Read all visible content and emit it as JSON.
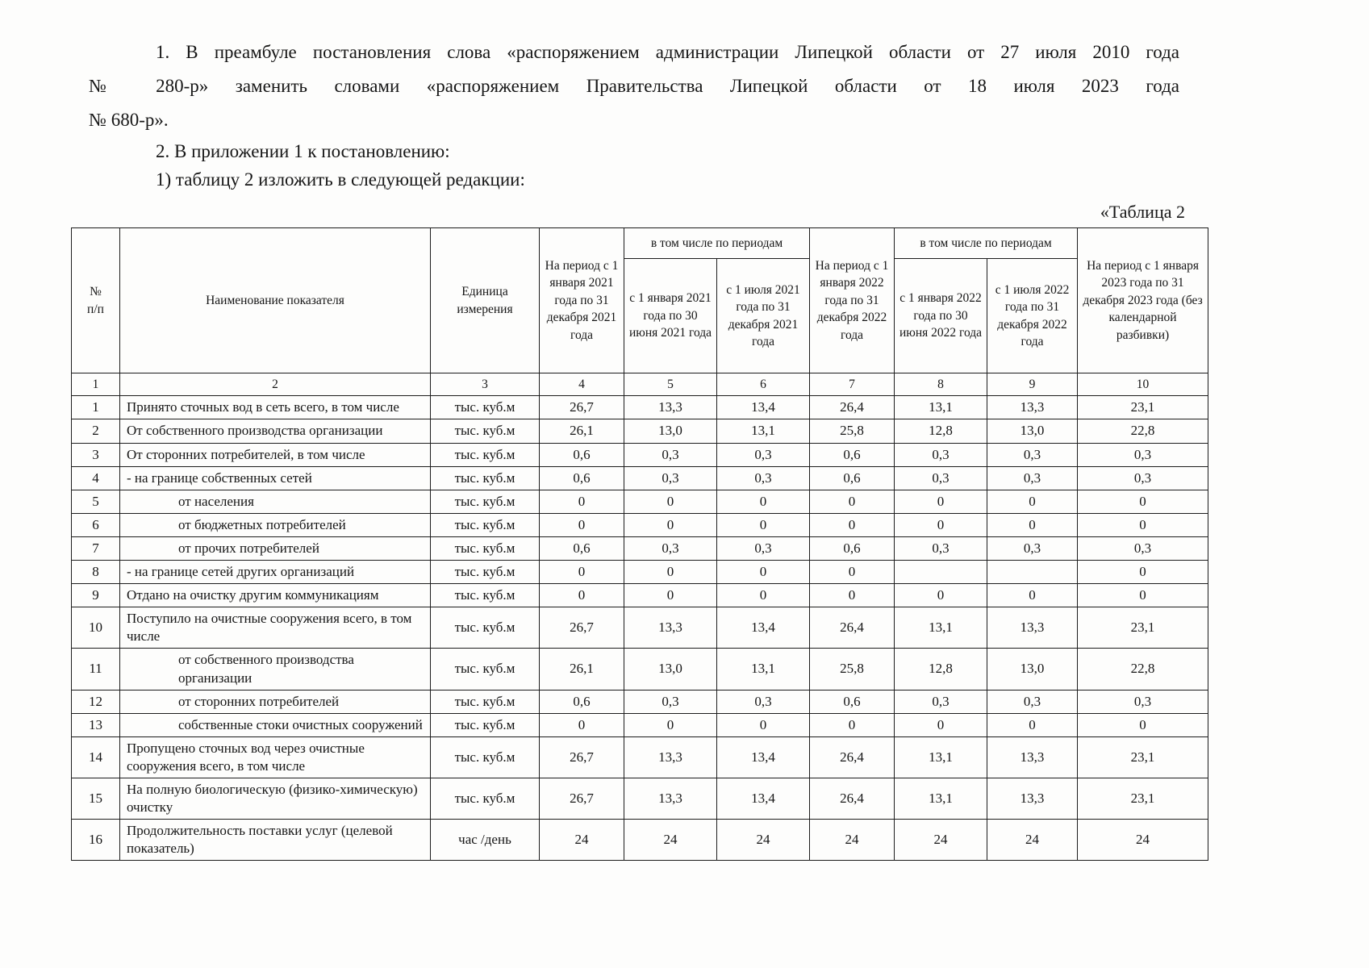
{
  "document": {
    "paragraph1_lines": [
      "1.  В преамбуле постановления слова «распоряжением администрации Липецкой области от 27 июля 2010 года",
      "№ 280-р» заменить словами «распоряжением Правительства Липецкой области от 18 июля 2023 года",
      "№ 680-р»."
    ],
    "paragraph2": "2.  В приложении 1 к постановлению:",
    "paragraph3": "1)  таблицу 2 изложить в следующей редакции:",
    "table_label": "«Таблица 2"
  },
  "table": {
    "header": {
      "num": "№\nп/п",
      "name": "Наименование показателя",
      "unit": "Единица измерения",
      "period2021": "На период с 1 января 2021 года по 31 декабря 2021 года",
      "including": "в том числе по периодам",
      "h2021a": "с 1 января 2021 года по 30 июня 2021 года",
      "h2021b": "с 1 июля 2021 года по 31 декабря 2021 года",
      "period2022": "На период с 1 января 2022 года по 31 декабря 2022 года",
      "h2022a": "с 1 января 2022 года по 30 июня 2022 года",
      "h2022b": "с 1 июля 2022 года по 31 декабря 2022 года",
      "period2023": "На период с 1 января 2023 года по 31 декабря 2023 года (без календарной разбивки)"
    },
    "column_numbers": [
      "1",
      "2",
      "3",
      "4",
      "5",
      "6",
      "7",
      "8",
      "9",
      "10"
    ],
    "rows": [
      {
        "num": "1",
        "name": "Принято сточных вод в сеть всего, в том числе",
        "unit": "тыс. куб.м",
        "indent": false,
        "values": [
          "26,7",
          "13,3",
          "13,4",
          "26,4",
          "13,1",
          "13,3",
          "23,1"
        ]
      },
      {
        "num": "2",
        "name": "От собственного производства организации",
        "unit": "тыс. куб.м",
        "indent": false,
        "values": [
          "26,1",
          "13,0",
          "13,1",
          "25,8",
          "12,8",
          "13,0",
          "22,8"
        ]
      },
      {
        "num": "3",
        "name": "От сторонних потребителей, в том числе",
        "unit": "тыс. куб.м",
        "indent": false,
        "values": [
          "0,6",
          "0,3",
          "0,3",
          "0,6",
          "0,3",
          "0,3",
          "0,3"
        ]
      },
      {
        "num": "4",
        "name": "- на границе собственных сетей",
        "unit": "тыс. куб.м",
        "indent": false,
        "values": [
          "0,6",
          "0,3",
          "0,3",
          "0,6",
          "0,3",
          "0,3",
          "0,3"
        ]
      },
      {
        "num": "5",
        "name": "от населения",
        "unit": "тыс. куб.м",
        "indent": true,
        "values": [
          "0",
          "0",
          "0",
          "0",
          "0",
          "0",
          "0"
        ]
      },
      {
        "num": "6",
        "name": "от бюджетных потребителей",
        "unit": "тыс. куб.м",
        "indent": true,
        "values": [
          "0",
          "0",
          "0",
          "0",
          "0",
          "0",
          "0"
        ]
      },
      {
        "num": "7",
        "name": "от прочих потребителей",
        "unit": "тыс. куб.м",
        "indent": true,
        "values": [
          "0,6",
          "0,3",
          "0,3",
          "0,6",
          "0,3",
          "0,3",
          "0,3"
        ]
      },
      {
        "num": "8",
        "name": "- на границе сетей других организаций",
        "unit": "тыс. куб.м",
        "indent": false,
        "values": [
          "0",
          "0",
          "0",
          "0",
          "",
          "",
          "0"
        ]
      },
      {
        "num": "9",
        "name": "Отдано на очистку другим коммуникациям",
        "unit": "тыс. куб.м",
        "indent": false,
        "values": [
          "0",
          "0",
          "0",
          "0",
          "0",
          "0",
          "0"
        ]
      },
      {
        "num": "10",
        "name": "Поступило на очистные сооружения всего, в том числе",
        "unit": "тыс. куб.м",
        "indent": false,
        "values": [
          "26,7",
          "13,3",
          "13,4",
          "26,4",
          "13,1",
          "13,3",
          "23,1"
        ]
      },
      {
        "num": "11",
        "name": "от собственного производства организации",
        "unit": "тыс. куб.м",
        "indent": true,
        "values": [
          "26,1",
          "13,0",
          "13,1",
          "25,8",
          "12,8",
          "13,0",
          "22,8"
        ]
      },
      {
        "num": "12",
        "name": "от сторонних потребителей",
        "unit": "тыс. куб.м",
        "indent": true,
        "values": [
          "0,6",
          "0,3",
          "0,3",
          "0,6",
          "0,3",
          "0,3",
          "0,3"
        ]
      },
      {
        "num": "13",
        "name": "собственные стоки очистных сооружений",
        "unit": "тыс. куб.м",
        "indent": true,
        "values": [
          "0",
          "0",
          "0",
          "0",
          "0",
          "0",
          "0"
        ]
      },
      {
        "num": "14",
        "name": "Пропущено сточных вод через очистные сооружения всего, в том числе",
        "unit": "тыс. куб.м",
        "indent": false,
        "values": [
          "26,7",
          "13,3",
          "13,4",
          "26,4",
          "13,1",
          "13,3",
          "23,1"
        ]
      },
      {
        "num": "15",
        "name": "На полную биологическую (физико-химическую) очистку",
        "unit": "тыс. куб.м",
        "indent": false,
        "values": [
          "26,7",
          "13,3",
          "13,4",
          "26,4",
          "13,1",
          "13,3",
          "23,1"
        ]
      },
      {
        "num": "16",
        "name": "Продолжительность поставки услуг (целевой показатель)",
        "unit": "час /день",
        "indent": false,
        "values": [
          "24",
          "24",
          "24",
          "24",
          "24",
          "24",
          "24"
        ]
      }
    ]
  }
}
